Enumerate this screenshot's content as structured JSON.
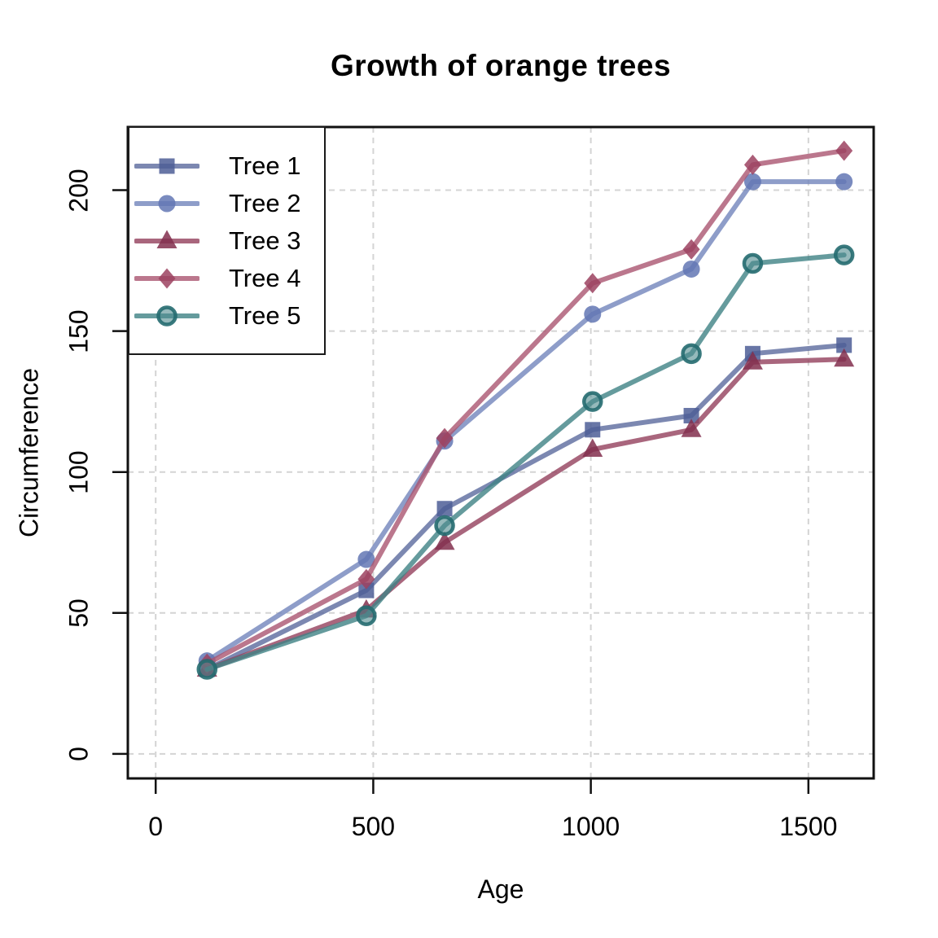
{
  "chart_data": {
    "type": "line",
    "title": "Growth of orange trees",
    "xlabel": "Age",
    "ylabel": "Circumference",
    "x_ticks": [
      0,
      500,
      1000,
      1500
    ],
    "y_ticks": [
      0,
      50,
      100,
      150,
      200
    ],
    "xlim": [
      -64,
      1650
    ],
    "ylim": [
      -8.7,
      222.4
    ],
    "grid": true,
    "grid_color": "#d4d4d4",
    "axis_color": "#111111",
    "legend_position": "topleft",
    "x": [
      118,
      484,
      664,
      1004,
      1231,
      1372,
      1582
    ],
    "series": [
      {
        "name": "Tree 1",
        "marker": "square",
        "line_color": "#5b6a9d",
        "marker_color": "#4d5e96",
        "values": [
          30,
          58,
          87,
          115,
          120,
          142,
          145
        ]
      },
      {
        "name": "Tree 2",
        "marker": "circle",
        "line_color": "#7284bb",
        "marker_color": "#6377b4",
        "values": [
          33,
          69,
          111,
          156,
          172,
          203,
          203
        ]
      },
      {
        "name": "Tree 3",
        "marker": "triangle",
        "line_color": "#93405c",
        "marker_color": "#822f4e",
        "values": [
          30,
          51,
          75,
          108,
          115,
          139,
          140
        ]
      },
      {
        "name": "Tree 4",
        "marker": "diamond",
        "line_color": "#aa5570",
        "marker_color": "#9c4260",
        "values": [
          32,
          62,
          112,
          167,
          179,
          209,
          214
        ]
      },
      {
        "name": "Tree 5",
        "marker": "circle-ring",
        "line_color": "#3f8285",
        "marker_color": "#4f8b8d",
        "marker_ring_color": "#256b70",
        "values": [
          30,
          49,
          81,
          125,
          142,
          174,
          177
        ]
      }
    ]
  }
}
